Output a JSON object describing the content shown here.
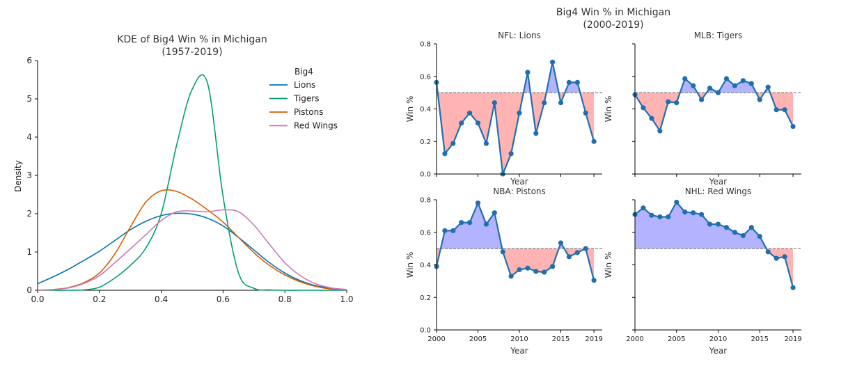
{
  "kde_chart": {
    "title_line1": "KDE of Big4 Win % in Michigan",
    "title_line2": "(1957-2019)",
    "ylabel": "Density",
    "legend_title": "Big4"
  },
  "panels_header": {
    "title_line1": "Big4 Win % in Michigan",
    "title_line2": "(2000-2019)"
  },
  "colors": {
    "Lions": "#0173b2",
    "Tigers": "#029e73",
    "Pistons": "#d55e00",
    "Red Wings": "#cc78bc",
    "above_fill": "#b3b3ff",
    "below_fill": "#ffb3b3",
    "panel_line": "#1f6fb0",
    "baseline": "#808080"
  },
  "chart_data": [
    {
      "type": "line",
      "title": "KDE of Big4 Win % in Michigan\n(1957-2019)",
      "xlabel": "",
      "ylabel": "Density",
      "xlim": [
        0.0,
        1.0
      ],
      "ylim": [
        0,
        6
      ],
      "xticks": [
        0.0,
        0.2,
        0.4,
        0.6,
        0.8,
        1.0
      ],
      "yticks": [
        0,
        1,
        2,
        3,
        4,
        5,
        6
      ],
      "legend_title": "Big4",
      "legend_position": "top-right",
      "x": [
        0.0,
        0.05,
        0.1,
        0.15,
        0.2,
        0.25,
        0.3,
        0.35,
        0.4,
        0.45,
        0.5,
        0.55,
        0.6,
        0.65,
        0.7,
        0.75,
        0.8,
        0.85,
        0.9,
        0.95,
        1.0
      ],
      "series": [
        {
          "name": "Lions",
          "values": [
            0.17,
            0.35,
            0.55,
            0.78,
            1.02,
            1.3,
            1.58,
            1.8,
            1.95,
            2.01,
            1.99,
            1.88,
            1.68,
            1.38,
            1.05,
            0.72,
            0.45,
            0.25,
            0.12,
            0.05,
            0.02
          ]
        },
        {
          "name": "Tigers",
          "values": [
            0.0,
            0.0,
            0.0,
            0.01,
            0.08,
            0.32,
            0.65,
            1.1,
            2.0,
            3.8,
            5.25,
            5.4,
            2.45,
            0.45,
            0.05,
            0.01,
            0.0,
            0.0,
            0.0,
            0.0,
            0.0
          ]
        },
        {
          "name": "Pistons",
          "values": [
            0.0,
            0.02,
            0.07,
            0.2,
            0.45,
            0.95,
            1.65,
            2.3,
            2.6,
            2.58,
            2.38,
            2.1,
            1.78,
            1.38,
            0.98,
            0.65,
            0.4,
            0.22,
            0.1,
            0.03,
            0.01
          ]
        },
        {
          "name": "Red Wings",
          "values": [
            0.0,
            0.02,
            0.06,
            0.18,
            0.38,
            0.72,
            1.08,
            1.45,
            1.82,
            2.05,
            2.07,
            2.05,
            2.1,
            2.05,
            1.7,
            1.2,
            0.72,
            0.38,
            0.17,
            0.06,
            0.02
          ]
        }
      ]
    },
    {
      "type": "line",
      "title": "NFL: Lions",
      "xlabel": "Year",
      "ylabel": "Win %",
      "xlim": [
        2000,
        2020
      ],
      "ylim": [
        0.0,
        0.8
      ],
      "yticks": [
        0.0,
        0.2,
        0.4,
        0.6,
        0.8
      ],
      "baseline": 0.5,
      "x": [
        2000,
        2001,
        2002,
        2003,
        2004,
        2005,
        2006,
        2007,
        2008,
        2009,
        2010,
        2011,
        2012,
        2013,
        2014,
        2015,
        2016,
        2017,
        2018,
        2019
      ],
      "values": [
        0.563,
        0.125,
        0.188,
        0.313,
        0.375,
        0.313,
        0.188,
        0.438,
        0.0,
        0.125,
        0.375,
        0.625,
        0.25,
        0.438,
        0.688,
        0.438,
        0.563,
        0.563,
        0.375,
        0.2
      ]
    },
    {
      "type": "line",
      "title": "MLB: Tigers",
      "xlabel": "Year",
      "ylabel": "Win %",
      "xlim": [
        2000,
        2020
      ],
      "ylim": [
        0.0,
        0.8
      ],
      "baseline": 0.5,
      "x": [
        2000,
        2001,
        2002,
        2003,
        2004,
        2005,
        2006,
        2007,
        2008,
        2009,
        2010,
        2011,
        2012,
        2013,
        2014,
        2015,
        2016,
        2017,
        2018,
        2019
      ],
      "values": [
        0.488,
        0.407,
        0.342,
        0.265,
        0.444,
        0.438,
        0.586,
        0.543,
        0.457,
        0.528,
        0.5,
        0.586,
        0.543,
        0.574,
        0.556,
        0.457,
        0.534,
        0.395,
        0.395,
        0.292
      ]
    },
    {
      "type": "line",
      "title": "NBA: Pistons",
      "xlabel": "Year",
      "ylabel": "Win %",
      "xlim": [
        2000,
        2020
      ],
      "ylim": [
        0.0,
        0.8
      ],
      "yticks": [
        0.0,
        0.2,
        0.4,
        0.6,
        0.8
      ],
      "xticks": [
        2000,
        2005,
        2010,
        2015,
        2019
      ],
      "baseline": 0.5,
      "x": [
        2000,
        2001,
        2002,
        2003,
        2004,
        2005,
        2006,
        2007,
        2008,
        2009,
        2010,
        2011,
        2012,
        2013,
        2014,
        2015,
        2016,
        2017,
        2018,
        2019
      ],
      "values": [
        0.39,
        0.61,
        0.61,
        0.66,
        0.66,
        0.78,
        0.65,
        0.72,
        0.48,
        0.33,
        0.37,
        0.38,
        0.36,
        0.355,
        0.39,
        0.535,
        0.45,
        0.475,
        0.5,
        0.305
      ]
    },
    {
      "type": "line",
      "title": "NHL: Red Wings",
      "xlabel": "Year",
      "ylabel": "Win %",
      "xlim": [
        2000,
        2020
      ],
      "ylim": [
        0.0,
        0.8
      ],
      "xticks": [
        2000,
        2005,
        2010,
        2015,
        2019
      ],
      "baseline": 0.5,
      "x": [
        2000,
        2001,
        2002,
        2003,
        2004,
        2005,
        2006,
        2007,
        2008,
        2009,
        2010,
        2011,
        2012,
        2013,
        2014,
        2015,
        2016,
        2017,
        2018,
        2019
      ],
      "values": [
        0.71,
        0.75,
        0.705,
        0.695,
        0.695,
        0.785,
        0.725,
        0.72,
        0.71,
        0.65,
        0.65,
        0.63,
        0.6,
        0.58,
        0.63,
        0.575,
        0.48,
        0.44,
        0.45,
        0.26
      ]
    }
  ]
}
